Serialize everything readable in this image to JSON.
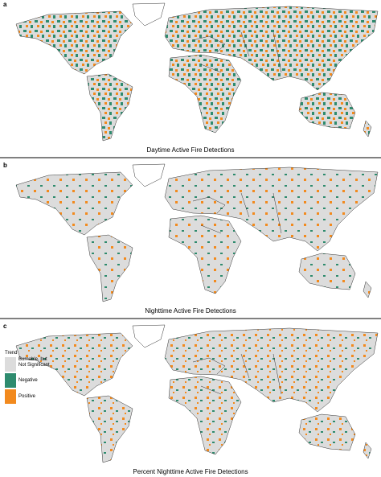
{
  "panels": [
    {
      "letter": "a",
      "caption": "Daytime Active Fire Detections"
    },
    {
      "letter": "b",
      "caption": "Nighttime Active Fire Detections"
    },
    {
      "letter": "c",
      "caption": "Percent Nighttime Active Fire Detections"
    }
  ],
  "legend": {
    "title": "Trend",
    "items": [
      {
        "label": "Burnable, but Not Significant"
      },
      {
        "label": "Negative"
      },
      {
        "label": "Positive"
      }
    ]
  }
}
